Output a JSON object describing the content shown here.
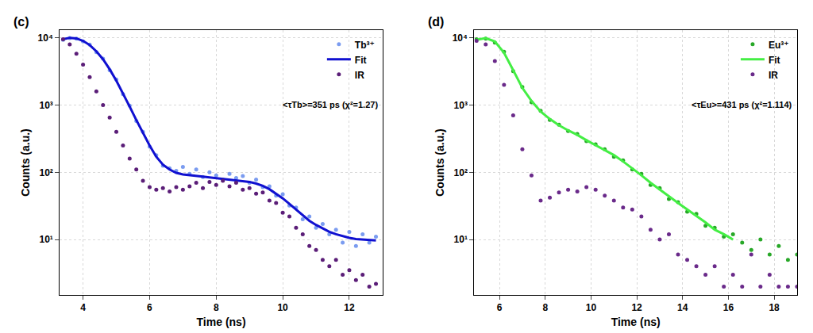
{
  "chart_data": [
    {
      "type": "scatter",
      "title": "(c)",
      "x_label": "Time (ns)",
      "y_label": "Counts (a.u.)",
      "log": "y",
      "grid": true,
      "legend": "upper right",
      "annotations": [
        "<τTb>=351 ps (χ²=1.27)"
      ],
      "xlim": [
        3.3,
        13
      ],
      "xticks": [
        4,
        6,
        8,
        10,
        12
      ],
      "ylim": [
        1.5,
        13000
      ],
      "yticks": [
        {
          "value": 10,
          "label": "10¹"
        },
        {
          "value": 100,
          "label": "10²"
        },
        {
          "value": 1000,
          "label": "10³"
        },
        {
          "value": 10000,
          "label": "10⁴"
        }
      ],
      "series": [
        {
          "name": "Tb³⁺",
          "type": "scatter",
          "marker": "circle",
          "color": "#7b9cf0",
          "x": [
            3.4,
            3.6,
            3.8,
            4.0,
            4.2,
            4.4,
            4.6,
            4.8,
            5.0,
            5.2,
            5.4,
            5.6,
            5.8,
            6.0,
            6.2,
            6.4,
            6.6,
            6.8,
            7.0,
            7.2,
            7.4,
            7.6,
            7.8,
            8.0,
            8.2,
            8.4,
            8.6,
            8.8,
            9.0,
            9.2,
            9.4,
            9.6,
            9.8,
            10.0,
            10.2,
            10.4,
            10.6,
            10.8,
            11.0,
            11.2,
            11.4,
            11.6,
            11.8,
            12.0,
            12.2,
            12.4,
            12.6,
            12.8
          ],
          "values": [
            9300,
            9900,
            9700,
            8800,
            7900,
            6100,
            4900,
            3300,
            2400,
            1450,
            980,
            580,
            400,
            240,
            180,
            125,
            115,
            105,
            120,
            95,
            110,
            85,
            100,
            90,
            78,
            95,
            82,
            88,
            70,
            78,
            60,
            62,
            45,
            47,
            32,
            30,
            20,
            22,
            15,
            17,
            12,
            14,
            9,
            13,
            8,
            12,
            9,
            11
          ]
        },
        {
          "name": "Fit",
          "type": "line",
          "line_style": "solid",
          "color": "#1010d0",
          "x": [
            3.4,
            3.6,
            3.8,
            4.0,
            4.2,
            4.4,
            4.6,
            4.8,
            5.0,
            5.2,
            5.4,
            5.6,
            5.8,
            6.0,
            6.2,
            6.4,
            6.6,
            6.8,
            7.0,
            7.2,
            7.4,
            7.6,
            7.8,
            8.0,
            8.2,
            8.4,
            8.6,
            8.8,
            9.0,
            9.2,
            9.4,
            9.6,
            9.8,
            10.0,
            10.2,
            10.4,
            10.6,
            10.8,
            11.0,
            11.2,
            11.4,
            11.6,
            11.8,
            12.0,
            12.2,
            12.4,
            12.6,
            12.8
          ],
          "values": [
            9500,
            10000,
            9800,
            9000,
            7800,
            6300,
            4800,
            3400,
            2300,
            1500,
            950,
            600,
            380,
            250,
            170,
            130,
            110,
            98,
            93,
            90,
            88,
            86,
            84,
            82,
            80,
            78,
            76,
            74,
            72,
            68,
            63,
            56,
            48,
            41,
            34,
            28,
            23,
            19,
            16.5,
            14.5,
            13,
            12,
            11.2,
            10.6,
            10.2,
            10,
            9.8,
            9.7
          ]
        },
        {
          "name": "IR",
          "type": "scatter",
          "marker": "circle",
          "color": "#5b1e78",
          "x": [
            3.4,
            3.6,
            3.8,
            4.0,
            4.2,
            4.4,
            4.6,
            4.8,
            5.0,
            5.2,
            5.4,
            5.6,
            5.8,
            6.0,
            6.2,
            6.4,
            6.6,
            6.8,
            7.0,
            7.2,
            7.4,
            7.6,
            7.8,
            8.0,
            8.2,
            8.4,
            8.6,
            8.8,
            9.0,
            9.2,
            9.4,
            9.6,
            9.8,
            10.0,
            10.2,
            10.4,
            10.6,
            10.8,
            11.0,
            11.2,
            11.4,
            11.6,
            11.8,
            12.0,
            12.2,
            12.4,
            12.6,
            12.8
          ],
          "values": [
            9500,
            8000,
            5800,
            4000,
            2600,
            1600,
            1000,
            650,
            400,
            250,
            160,
            110,
            75,
            60,
            55,
            58,
            52,
            60,
            55,
            62,
            70,
            58,
            72,
            65,
            75,
            62,
            70,
            55,
            58,
            48,
            50,
            38,
            35,
            25,
            22,
            15,
            12,
            8,
            7,
            5,
            4,
            5,
            3,
            3.5,
            2.5,
            3,
            2,
            2.2
          ]
        }
      ]
    },
    {
      "type": "scatter",
      "title": "(d)",
      "x_label": "Time (ns)",
      "y_label": "Counts (a.u.)",
      "log": "y",
      "grid": true,
      "legend": "upper right",
      "annotations": [
        "<τEu>=431 ps (χ²=1.114)"
      ],
      "xlim": [
        4.9,
        19
      ],
      "xticks": [
        6,
        8,
        10,
        12,
        14,
        16,
        18
      ],
      "ylim": [
        1.5,
        13000
      ],
      "yticks": [
        {
          "value": 10,
          "label": "10¹"
        },
        {
          "value": 100,
          "label": "10²"
        },
        {
          "value": 1000,
          "label": "10³"
        },
        {
          "value": 10000,
          "label": "10⁴"
        }
      ],
      "series": [
        {
          "name": "Eu³⁺",
          "type": "scatter",
          "marker": "circle",
          "color": "#28a828",
          "x": [
            5.0,
            5.4,
            5.8,
            6.2,
            6.6,
            7.0,
            7.4,
            7.8,
            8.2,
            8.6,
            9.0,
            9.4,
            9.8,
            10.2,
            10.6,
            11.0,
            11.4,
            11.8,
            12.2,
            12.6,
            13.0,
            13.4,
            13.8,
            14.2,
            14.6,
            15.0,
            15.4,
            15.8,
            16.2,
            16.6,
            17.0,
            17.4,
            17.8,
            18.2,
            18.6,
            19.0
          ],
          "values": [
            9500,
            9700,
            8500,
            6200,
            3200,
            1850,
            1100,
            820,
            600,
            510,
            410,
            370,
            290,
            260,
            220,
            170,
            150,
            110,
            95,
            65,
            58,
            40,
            36,
            26,
            24,
            16,
            15,
            11,
            12,
            9,
            7,
            10,
            6,
            8,
            5,
            6
          ]
        },
        {
          "name": "Fit",
          "type": "line",
          "line_style": "solid",
          "color": "#44ee44",
          "x": [
            5.0,
            5.4,
            5.8,
            6.2,
            6.6,
            7.0,
            7.4,
            7.8,
            8.2,
            8.6,
            9.0,
            9.4,
            9.8,
            10.2,
            10.6,
            11.0,
            11.4,
            11.8,
            12.2,
            12.6,
            13.0,
            13.4,
            13.8,
            14.2,
            14.6,
            15.0,
            15.4,
            15.8,
            16.2
          ],
          "values": [
            9300,
            9900,
            8800,
            6000,
            3300,
            1800,
            1150,
            800,
            620,
            500,
            420,
            360,
            300,
            255,
            215,
            180,
            145,
            115,
            90,
            70,
            55,
            44,
            35,
            28,
            22,
            18,
            14,
            12,
            10
          ]
        },
        {
          "name": "IR",
          "type": "scatter",
          "marker": "circle",
          "color": "#6a2a8a",
          "x": [
            5.0,
            5.4,
            5.8,
            6.2,
            6.6,
            7.0,
            7.4,
            7.8,
            8.2,
            8.6,
            9.0,
            9.4,
            9.8,
            10.2,
            10.6,
            11.0,
            11.4,
            11.8,
            12.2,
            12.6,
            13.0,
            13.4,
            13.8,
            14.2,
            14.6,
            15.0,
            15.4,
            15.8,
            16.2,
            16.6,
            17.0,
            17.4,
            17.8,
            18.2,
            18.6,
            19.0
          ],
          "values": [
            9000,
            8000,
            4500,
            2000,
            700,
            220,
            90,
            38,
            42,
            50,
            55,
            52,
            60,
            55,
            45,
            38,
            30,
            28,
            22,
            14,
            10,
            12,
            6,
            5,
            4,
            3,
            4,
            2,
            3,
            2,
            6,
            2,
            3,
            2,
            2,
            2
          ]
        }
      ]
    }
  ]
}
